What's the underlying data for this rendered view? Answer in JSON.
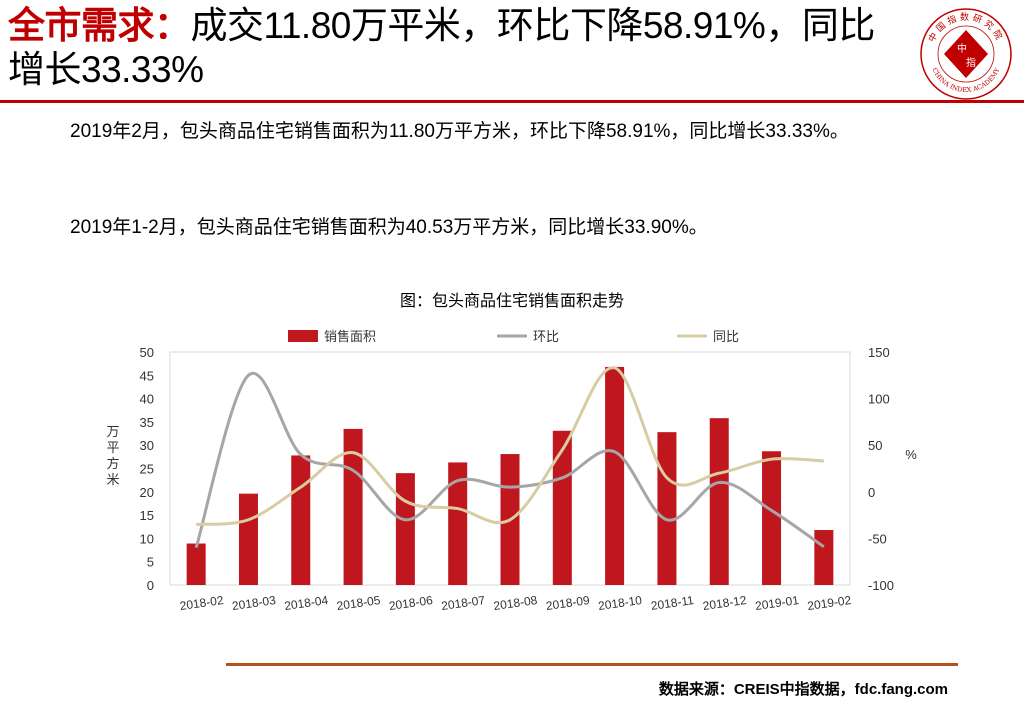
{
  "header": {
    "title_highlight": "全市需求：",
    "title_rest": "成交11.80万平米，环比下降58.91%，同比增长33.33%",
    "logo_top_text": "中国指数研究院",
    "logo_center_top": "中",
    "logo_center_bottom": "指",
    "logo_bottom_text": "CHINA INDEX ACADEMY"
  },
  "body": {
    "paragraph1": "2019年2月，包头商品住宅销售面积为11.80万平方米，环比下降58.91%，同比增长33.33%。",
    "paragraph2": "2019年1-2月，包头商品住宅销售面积为40.53万平方米，同比增长33.90%。"
  },
  "footer": {
    "source": "数据来源：CREIS中指数据，fdc.fang.com"
  },
  "colors": {
    "accent_red": "#c00000",
    "bar": "#c0161d",
    "mom_line": "#a6a6a6",
    "yoy_line": "#d8cca3",
    "bottom_rule": "#b8501a"
  },
  "chart_data": {
    "type": "bar",
    "title": "图：包头商品住宅销售面积走势",
    "categories": [
      "2018-02",
      "2018-03",
      "2018-04",
      "2018-05",
      "2018-06",
      "2018-07",
      "2018-08",
      "2018-09",
      "2018-10",
      "2018-11",
      "2018-12",
      "2019-01",
      "2019-02"
    ],
    "series": [
      {
        "name": "销售面积",
        "type": "bar",
        "axis": "left",
        "color": "#c0161d",
        "values": [
          8.9,
          19.6,
          27.8,
          33.5,
          24.0,
          26.3,
          28.1,
          33.1,
          46.8,
          32.8,
          35.8,
          28.7,
          11.8
        ]
      },
      {
        "name": "环比",
        "type": "line",
        "axis": "right",
        "color": "#a6a6a6",
        "values": [
          -60,
          125,
          40,
          23,
          -30,
          12,
          5,
          15,
          43,
          -30,
          10,
          -20,
          -59
        ]
      },
      {
        "name": "同比",
        "type": "line",
        "axis": "right",
        "color": "#d8cca3",
        "values": [
          -35,
          -30,
          5,
          42,
          -10,
          -18,
          -30,
          45,
          133,
          15,
          20,
          35,
          33
        ]
      }
    ],
    "ylabel_left": "万平方米",
    "ylabel_right": "%",
    "ylim_left": [
      0,
      50
    ],
    "yticks_left": [
      0,
      5,
      10,
      15,
      20,
      25,
      30,
      35,
      40,
      45,
      50
    ],
    "ylim_right": [
      -100,
      150
    ],
    "yticks_right": [
      -100,
      -50,
      0,
      50,
      100,
      150
    ],
    "legend_position": "top",
    "grid": false
  }
}
